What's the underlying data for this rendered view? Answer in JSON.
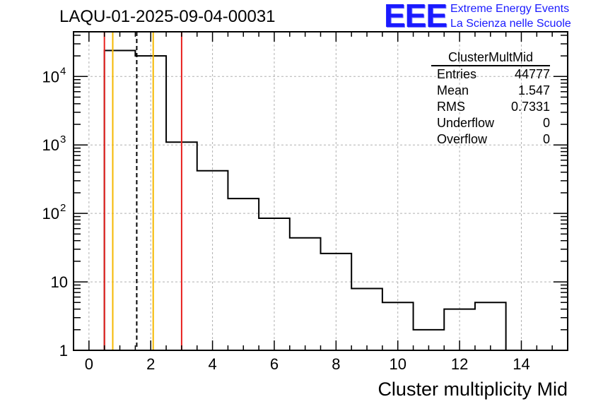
{
  "title": "LAQU-01-2025-09-04-00031",
  "logo": {
    "mark": "EEE",
    "line1": "Extreme Energy Events",
    "line2": "La Scienza nelle Scuole"
  },
  "stats": {
    "title": "ClusterMultMid",
    "rows": [
      {
        "label": "Entries",
        "value": "44777"
      },
      {
        "label": "Mean",
        "value": "1.547"
      },
      {
        "label": "RMS",
        "value": "0.7331"
      },
      {
        "label": "Underflow",
        "value": "0"
      },
      {
        "label": "Overflow",
        "value": "0"
      }
    ]
  },
  "colors": {
    "histogram": "#000000",
    "grid": "#b0b0b0",
    "red_line": "#e8201e",
    "orange_line": "#f5b800",
    "logo": "#1a1aff"
  },
  "chart_data": {
    "type": "histogram",
    "xlabel": "Cluster multiplicity Mid",
    "ylabel": "",
    "yscale": "log",
    "xlim": [
      -0.5,
      15.5
    ],
    "ylim": [
      1,
      45000
    ],
    "grid": true,
    "x_ticks": [
      0,
      2,
      4,
      6,
      8,
      10,
      12,
      14
    ],
    "x_tick_labels": [
      "0",
      "2",
      "4",
      "6",
      "8",
      "10",
      "12",
      "14"
    ],
    "y_ticks": [
      1,
      10,
      100,
      1000,
      10000
    ],
    "y_tick_labels": [
      {
        "base": "1",
        "exp": ""
      },
      {
        "base": "10",
        "exp": ""
      },
      {
        "base": "10",
        "exp": "2"
      },
      {
        "base": "10",
        "exp": "3"
      },
      {
        "base": "10",
        "exp": "4"
      }
    ],
    "bin_edges": [
      0.5,
      1.5,
      2.5,
      3.5,
      4.5,
      5.5,
      6.5,
      7.5,
      8.5,
      9.5,
      10.5,
      11.5,
      12.5,
      13.5
    ],
    "counts": [
      24000,
      20000,
      1100,
      420,
      165,
      85,
      44,
      26,
      8,
      5,
      2,
      4,
      5
    ],
    "vertical_lines": [
      {
        "x": 0.5,
        "color": "red",
        "style": "solid"
      },
      {
        "x": 3.0,
        "color": "red",
        "style": "solid"
      },
      {
        "x": 0.77,
        "color": "orange",
        "style": "solid"
      },
      {
        "x": 2.08,
        "color": "orange",
        "style": "solid"
      },
      {
        "x": 1.547,
        "color": "black",
        "style": "dashed"
      }
    ]
  }
}
